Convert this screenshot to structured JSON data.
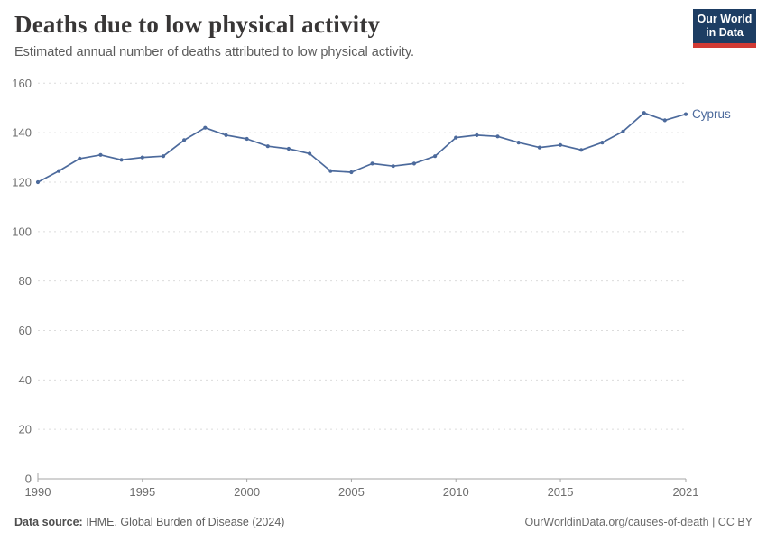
{
  "header": {
    "title": "Deaths due to low physical activity",
    "subtitle": "Estimated annual number of deaths attributed to low physical activity.",
    "logo": {
      "line1": "Our World",
      "line2": "in Data",
      "bg_color": "#1d3d63",
      "bar_color": "#d13a34"
    }
  },
  "chart_data": {
    "type": "line",
    "title": "Deaths due to low physical activity",
    "subtitle": "Estimated annual number of deaths attributed to low physical activity.",
    "series": [
      {
        "name": "Cyprus",
        "color": "#4c6a9c",
        "x": [
          1990,
          1991,
          1992,
          1993,
          1994,
          1995,
          1996,
          1997,
          1998,
          1999,
          2000,
          2001,
          2002,
          2003,
          2004,
          2005,
          2006,
          2007,
          2008,
          2009,
          2010,
          2011,
          2012,
          2013,
          2014,
          2015,
          2016,
          2017,
          2018,
          2019,
          2020,
          2021
        ],
        "values": [
          120,
          124.5,
          129.5,
          131,
          129,
          130,
          130.5,
          137,
          142,
          139,
          137.5,
          134.5,
          133.5,
          131.5,
          124.5,
          124,
          127.5,
          126.5,
          127.5,
          130.5,
          138,
          139,
          138.5,
          136,
          134,
          135,
          133,
          136,
          140.5,
          148,
          145,
          147.5
        ]
      }
    ],
    "xlabel": "",
    "ylabel": "",
    "xlim": [
      1990,
      2021
    ],
    "ylim": [
      0,
      160
    ],
    "yticks": [
      0,
      20,
      40,
      60,
      80,
      100,
      120,
      140,
      160
    ],
    "xticks": [
      1990,
      1995,
      2000,
      2005,
      2010,
      2015,
      2021
    ],
    "grid": "horizontal-dashed",
    "legend_position": "end-of-line-label",
    "grid_color": "#dcdcdc",
    "axis_color": "#a5a5a5",
    "tick_label_color": "#6e6e6e"
  },
  "footer": {
    "source_label": "Data source:",
    "source_value": " IHME, Global Burden of Disease (2024)",
    "link": "OurWorldinData.org/causes-of-death",
    "license_sep": " | ",
    "license": "CC BY"
  }
}
